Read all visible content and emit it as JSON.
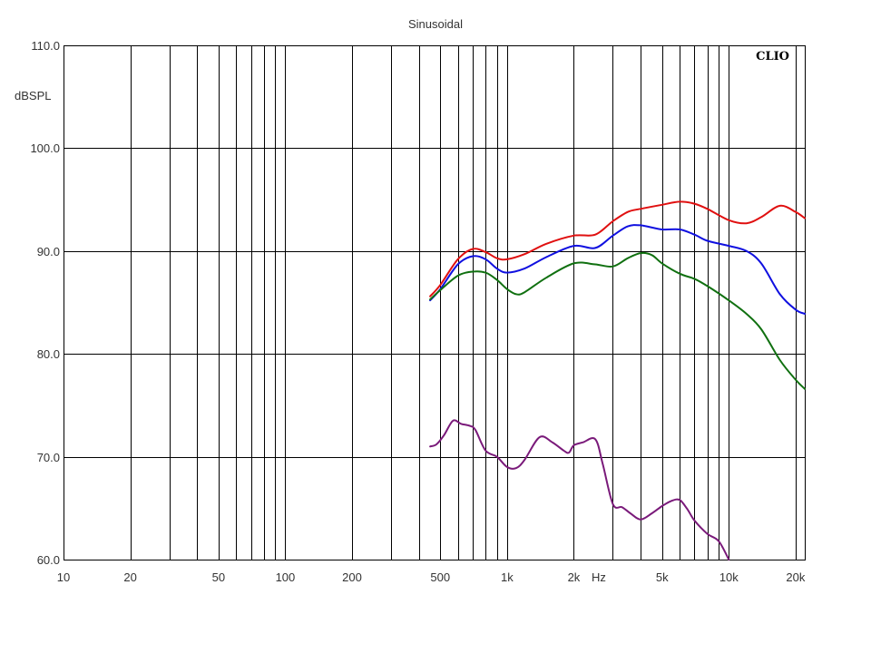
{
  "chart_data": {
    "type": "line",
    "title": "Sinusoidal",
    "ylabel": "dBSPL",
    "xunit": "Hz",
    "brand": "CLIO",
    "xscale": "log",
    "xlim": [
      10,
      22000
    ],
    "ylim": [
      60,
      110
    ],
    "grid": true,
    "x_major_ticks": [
      10,
      100,
      1000,
      10000
    ],
    "x_minor_ticks": [
      20,
      30,
      40,
      50,
      60,
      70,
      80,
      90,
      200,
      300,
      400,
      500,
      600,
      700,
      800,
      900,
      2000,
      3000,
      4000,
      5000,
      6000,
      7000,
      8000,
      9000,
      20000
    ],
    "x_tick_labels": [
      {
        "value": 10,
        "label": "10"
      },
      {
        "value": 20,
        "label": "20"
      },
      {
        "value": 50,
        "label": "50"
      },
      {
        "value": 100,
        "label": "100"
      },
      {
        "value": 200,
        "label": "200"
      },
      {
        "value": 500,
        "label": "500"
      },
      {
        "value": 1000,
        "label": "1k"
      },
      {
        "value": 2000,
        "label": "2k"
      },
      {
        "value": 5000,
        "label": "5k"
      },
      {
        "value": 10000,
        "label": "10k"
      },
      {
        "value": 20000,
        "label": "20k"
      }
    ],
    "y_ticks": [
      {
        "value": 110,
        "label": "110.0"
      },
      {
        "value": 100,
        "label": "100.0"
      },
      {
        "value": 90,
        "label": "90.0"
      },
      {
        "value": 80,
        "label": "80.0"
      },
      {
        "value": 70,
        "label": "70.0"
      },
      {
        "value": 60,
        "label": "60.0"
      }
    ],
    "series": [
      {
        "color": "#e01010",
        "x": [
          450,
          500,
          600,
          700,
          800,
          900,
          1000,
          1200,
          1500,
          2000,
          2500,
          3000,
          3500,
          4000,
          5000,
          6000,
          7000,
          8000,
          10000,
          12000,
          14000,
          17000,
          20000,
          22000
        ],
        "y": [
          85.6,
          86.7,
          89.2,
          90.2,
          89.9,
          89.3,
          89.2,
          89.7,
          90.7,
          91.5,
          91.6,
          92.9,
          93.8,
          94.1,
          94.5,
          94.8,
          94.6,
          94.1,
          93.0,
          92.7,
          93.3,
          94.4,
          93.8,
          93.2
        ]
      },
      {
        "color": "#1010e0",
        "x": [
          450,
          500,
          600,
          700,
          800,
          900,
          1000,
          1200,
          1500,
          2000,
          2500,
          3000,
          3500,
          4000,
          5000,
          6000,
          7000,
          8000,
          10000,
          12000,
          14000,
          17000,
          20000,
          22000
        ],
        "y": [
          85.2,
          86.3,
          88.7,
          89.5,
          89.2,
          88.3,
          87.9,
          88.3,
          89.4,
          90.5,
          90.3,
          91.5,
          92.4,
          92.5,
          92.1,
          92.1,
          91.6,
          91.0,
          90.5,
          90.0,
          88.8,
          85.8,
          84.3,
          83.9
        ]
      },
      {
        "color": "#107010",
        "x": [
          450,
          500,
          600,
          700,
          800,
          900,
          1000,
          1100,
          1200,
          1500,
          2000,
          2500,
          3000,
          3500,
          4000,
          4500,
          5000,
          6000,
          7000,
          8000,
          10000,
          12000,
          14000,
          17000,
          20000,
          22000
        ],
        "y": [
          85.3,
          86.2,
          87.6,
          88.0,
          87.9,
          87.2,
          86.3,
          85.8,
          86.0,
          87.4,
          88.8,
          88.7,
          88.5,
          89.3,
          89.8,
          89.6,
          88.8,
          87.8,
          87.3,
          86.6,
          85.2,
          83.9,
          82.4,
          79.4,
          77.5,
          76.6
        ]
      },
      {
        "color": "#7a1a7a",
        "x": [
          450,
          480,
          520,
          570,
          620,
          680,
          720,
          800,
          900,
          1000,
          1100,
          1200,
          1400,
          1600,
          1800,
          1900,
          2000,
          2200,
          2500,
          2700,
          3000,
          3300,
          3600,
          4000,
          4500,
          5000,
          5500,
          6000,
          6500,
          7000,
          8000,
          9000,
          10000
        ],
        "y": [
          71.0,
          71.2,
          72.1,
          73.5,
          73.2,
          73.0,
          72.6,
          70.6,
          70.0,
          69.0,
          68.9,
          69.7,
          71.9,
          71.4,
          70.6,
          70.4,
          71.1,
          71.4,
          71.7,
          69.3,
          65.4,
          65.1,
          64.5,
          63.9,
          64.5,
          65.2,
          65.7,
          65.8,
          64.9,
          63.8,
          62.5,
          61.8,
          60.0
        ]
      }
    ]
  }
}
